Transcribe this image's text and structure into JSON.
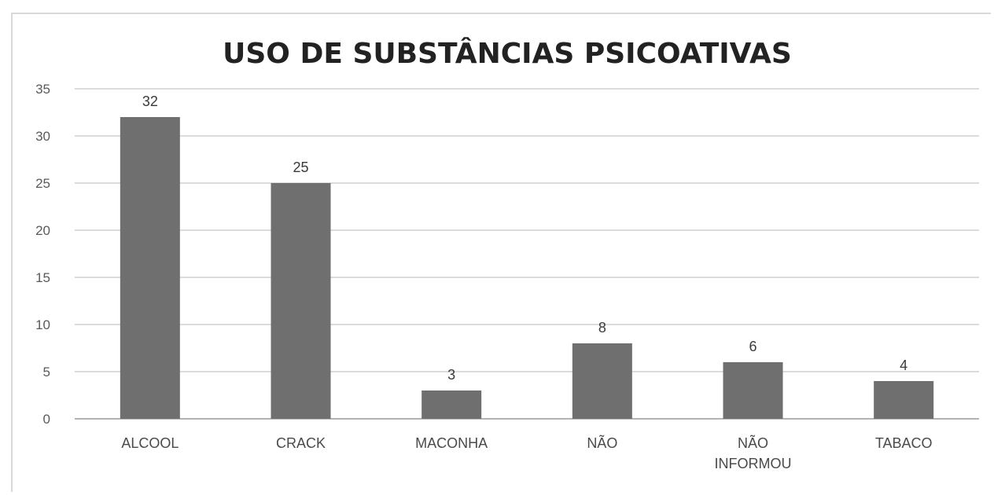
{
  "chart_data": {
    "type": "bar",
    "title": "USO DE SUBSTÂNCIAS PSICOATIVAS",
    "categories": [
      [
        "ALCOOL"
      ],
      [
        "CRACK"
      ],
      [
        "MACONHA"
      ],
      [
        "NÃO"
      ],
      [
        "NÃO",
        "INFORMOU"
      ],
      [
        "TABACO"
      ]
    ],
    "values": [
      32,
      25,
      3,
      8,
      6,
      4
    ],
    "ylim": [
      0,
      35
    ],
    "yticks": [
      0,
      5,
      10,
      15,
      20,
      25,
      30,
      35
    ],
    "grid": true,
    "data_labels": true,
    "bar_color": "#6f6f6f",
    "xlabel": "",
    "ylabel": ""
  }
}
